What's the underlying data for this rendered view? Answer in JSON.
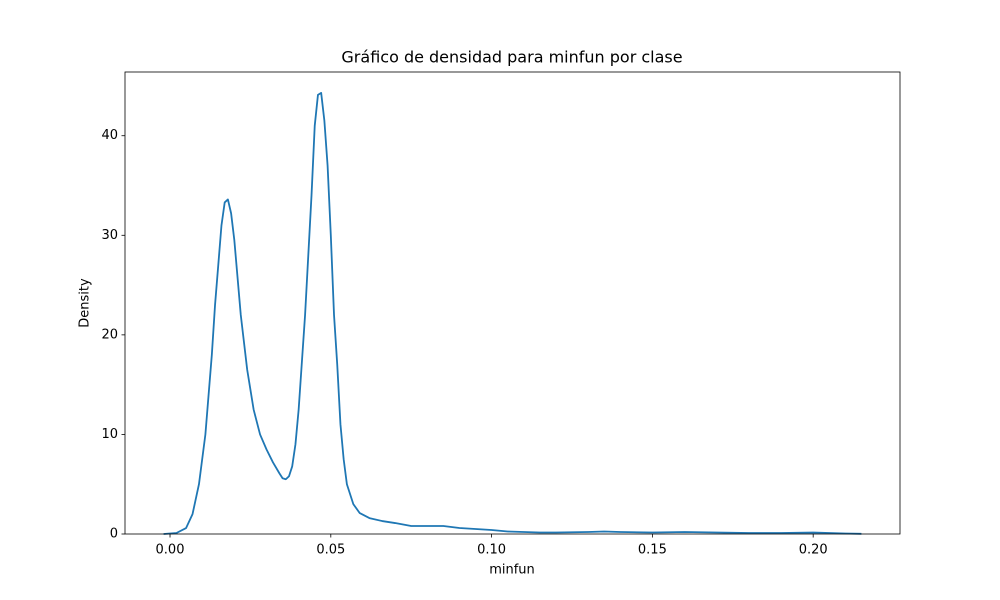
{
  "chart_data": {
    "type": "line",
    "title": "Gráfico de densidad para minfun por clase",
    "x_label": "minfun",
    "y_label": "Density",
    "x": [
      -0.002,
      0.002,
      0.005,
      0.007,
      0.009,
      0.011,
      0.013,
      0.014,
      0.015,
      0.016,
      0.017,
      0.018,
      0.019,
      0.02,
      0.022,
      0.024,
      0.026,
      0.028,
      0.03,
      0.032,
      0.034,
      0.035,
      0.036,
      0.037,
      0.038,
      0.039,
      0.04,
      0.042,
      0.044,
      0.045,
      0.046,
      0.047,
      0.048,
      0.049,
      0.05,
      0.051,
      0.052,
      0.053,
      0.054,
      0.055,
      0.057,
      0.059,
      0.062,
      0.066,
      0.07,
      0.075,
      0.08,
      0.085,
      0.09,
      0.095,
      0.1,
      0.105,
      0.11,
      0.115,
      0.12,
      0.13,
      0.135,
      0.14,
      0.15,
      0.16,
      0.17,
      0.18,
      0.19,
      0.2,
      0.21,
      0.215
    ],
    "values": [
      0,
      0.1,
      0.6,
      2,
      5,
      10,
      18,
      23,
      27,
      31,
      33.3,
      33.6,
      32.2,
      29.5,
      22,
      16.5,
      12.5,
      10,
      8.5,
      7.2,
      6.1,
      5.6,
      5.5,
      5.8,
      6.8,
      9,
      12.5,
      22,
      34,
      41,
      44.1,
      44.3,
      41.5,
      37,
      30,
      22,
      17,
      11,
      7.5,
      5,
      3,
      2.1,
      1.6,
      1.3,
      1.1,
      0.8,
      0.8,
      0.8,
      0.6,
      0.5,
      0.4,
      0.25,
      0.2,
      0.15,
      0.15,
      0.2,
      0.25,
      0.2,
      0.15,
      0.2,
      0.15,
      0.1,
      0.1,
      0.15,
      0.05,
      0.02
    ],
    "color": "#1f77b4",
    "xlim": [
      -0.014,
      0.227
    ],
    "ylim": [
      0,
      46.4
    ],
    "xticks": [
      {
        "value": 0,
        "label": "0.00"
      },
      {
        "value": 0.05,
        "label": "0.05"
      },
      {
        "value": 0.1,
        "label": "0.10"
      },
      {
        "value": 0.15,
        "label": "0.15"
      },
      {
        "value": 0.2,
        "label": "0.20"
      }
    ],
    "yticks": [
      0,
      10,
      20,
      30,
      40
    ],
    "grid": false
  }
}
